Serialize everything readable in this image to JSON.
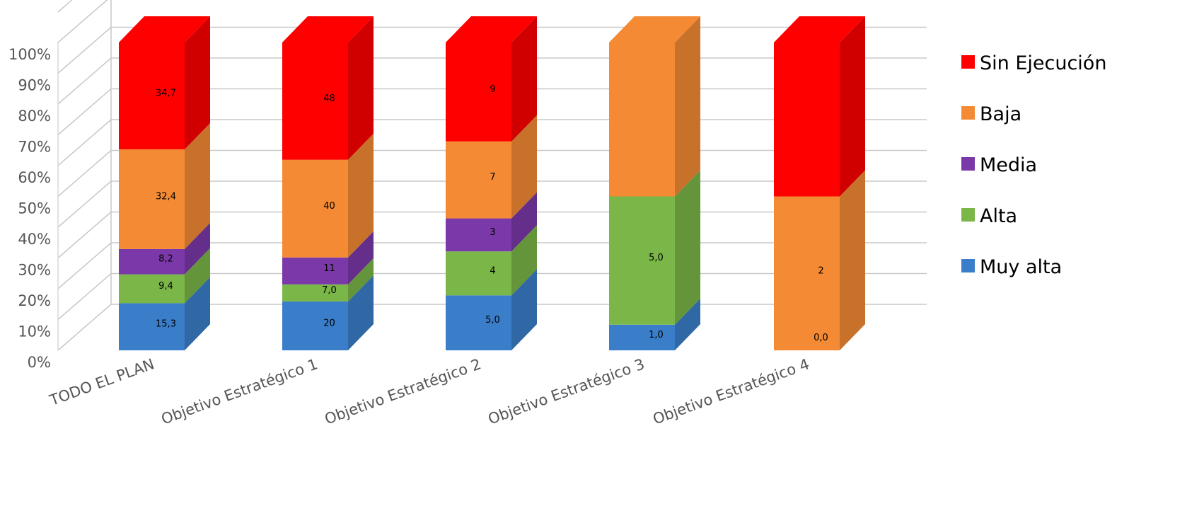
{
  "chart_data": {
    "type": "bar",
    "stacked": true,
    "normalized": true,
    "three_d": true,
    "categories": [
      "TODO EL PLAN",
      "Objetivo Estratégico 1",
      "Objetivo Estratégico 2",
      "Objetivo Estratégico 3",
      "Objetivo Estratégico 4"
    ],
    "series": [
      {
        "name": "Muy alta",
        "color": "#3a7dc9",
        "values": [
          15.3,
          20,
          5.0,
          1.0,
          0.0
        ],
        "labels": [
          "15,3",
          "20",
          "5,0",
          "1,0",
          "0,0"
        ]
      },
      {
        "name": "Alta",
        "color": "#7ab648",
        "values": [
          9.4,
          7.0,
          4,
          5.0,
          0
        ],
        "labels": [
          "9,4",
          "7,0",
          "4",
          "5,0",
          ""
        ]
      },
      {
        "name": "Media",
        "color": "#7a38a8",
        "values": [
          8.2,
          11,
          3,
          0,
          0
        ],
        "labels": [
          "8,2",
          "11",
          "3",
          "",
          ""
        ]
      },
      {
        "name": "Baja",
        "color": "#f48a34",
        "values": [
          32.4,
          40,
          7,
          6.0,
          2
        ],
        "labels": [
          "32,4",
          "40",
          "7",
          "",
          "2"
        ]
      },
      {
        "name": "Sin Ejecución",
        "color": "#ff0000",
        "values": [
          34.7,
          48,
          9,
          0,
          2
        ],
        "labels": [
          "34,7",
          "48",
          "9",
          "",
          ""
        ]
      }
    ],
    "y_ticks": [
      "0%",
      "10%",
      "20%",
      "30%",
      "40%",
      "50%",
      "60%",
      "70%",
      "80%",
      "90%",
      "100%"
    ],
    "ylim": [
      0,
      100
    ],
    "grid": true,
    "legend_position": "right",
    "title": "",
    "xlabel": "",
    "ylabel": ""
  }
}
